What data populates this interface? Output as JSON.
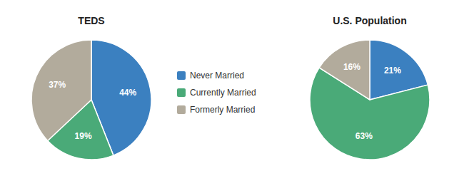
{
  "chart_data": [
    {
      "type": "pie",
      "title": "TEDS",
      "categories": [
        "Never Married",
        "Currently Married",
        "Formerly Married"
      ],
      "values": [
        44,
        19,
        37
      ],
      "value_labels": [
        "44%",
        "19%",
        "37%"
      ],
      "colors": [
        "#3b80c0",
        "#4aaa78",
        "#b2ab9c"
      ],
      "data_labels": true,
      "legend": "right"
    },
    {
      "type": "pie",
      "title": "U.S. Population",
      "values": [
        21,
        63,
        16
      ],
      "value_labels": [
        "21%",
        "63%",
        "16%"
      ],
      "colors": [
        "#3b80c0",
        "#4aaa78",
        "#b2ab9c"
      ],
      "data_labels": true
    }
  ]
}
